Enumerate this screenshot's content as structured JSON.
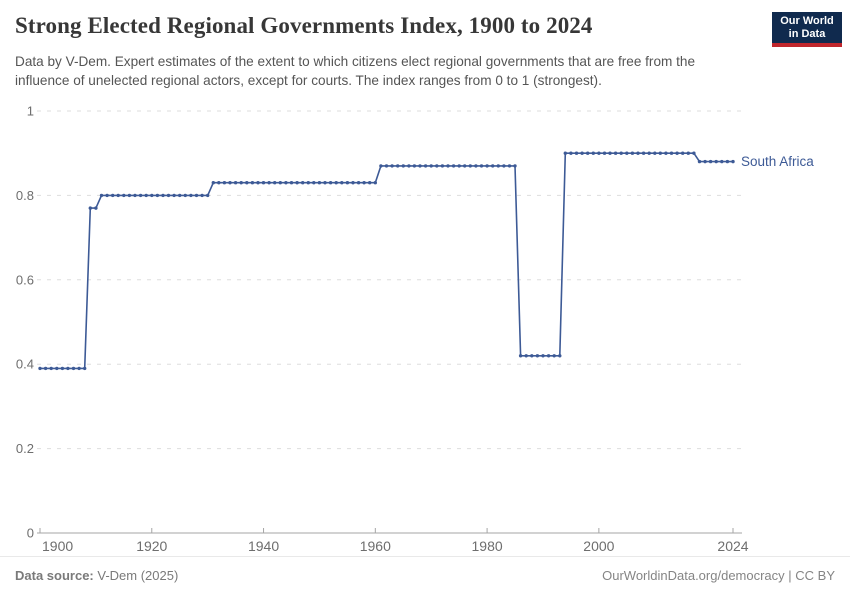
{
  "header": {
    "title": "Strong Elected Regional Governments Index, 1900 to 2024",
    "subtitle": "Data by V-Dem. Expert estimates of the extent to which citizens elect regional governments that are free from the influence of unelected regional actors, except for courts. The index ranges from 0 to 1 (strongest).",
    "logo": {
      "line1": "Our World",
      "line2": "in Data",
      "bg_color": "#102a4e",
      "bar_color": "#c0262c"
    }
  },
  "chart_data": {
    "type": "line",
    "title": "Strong Elected Regional Governments Index, 1900 to 2024",
    "xlabel": "",
    "ylabel": "",
    "x_range": [
      1900,
      2024
    ],
    "y_range": [
      0,
      1
    ],
    "x_ticks": [
      1900,
      1920,
      1940,
      1960,
      1980,
      2000,
      2024
    ],
    "y_ticks": [
      0,
      0.2,
      0.4,
      0.6,
      0.8,
      1
    ],
    "grid": true,
    "legend_position": "end-of-line",
    "line_color": "#3d5a96",
    "grid_color": "#dddddd",
    "axis_color": "#a5a5a5",
    "tick_label_color": "#6e6e6e",
    "series": [
      {
        "name": "South Africa",
        "step_segments": [
          {
            "from": 1900,
            "to": 1908,
            "value": 0.39
          },
          {
            "from": 1909,
            "to": 1910,
            "value": 0.77
          },
          {
            "from": 1911,
            "to": 1930,
            "value": 0.8
          },
          {
            "from": 1931,
            "to": 1960,
            "value": 0.83
          },
          {
            "from": 1961,
            "to": 1985,
            "value": 0.87
          },
          {
            "from": 1986,
            "to": 1993,
            "value": 0.42
          },
          {
            "from": 1994,
            "to": 2017,
            "value": 0.9
          },
          {
            "from": 2018,
            "to": 2024,
            "value": 0.88
          }
        ]
      }
    ]
  },
  "footer": {
    "source_label": "Data source:",
    "source_value": " V-Dem (2025)",
    "right_text": "OurWorldinData.org/democracy | CC BY"
  }
}
